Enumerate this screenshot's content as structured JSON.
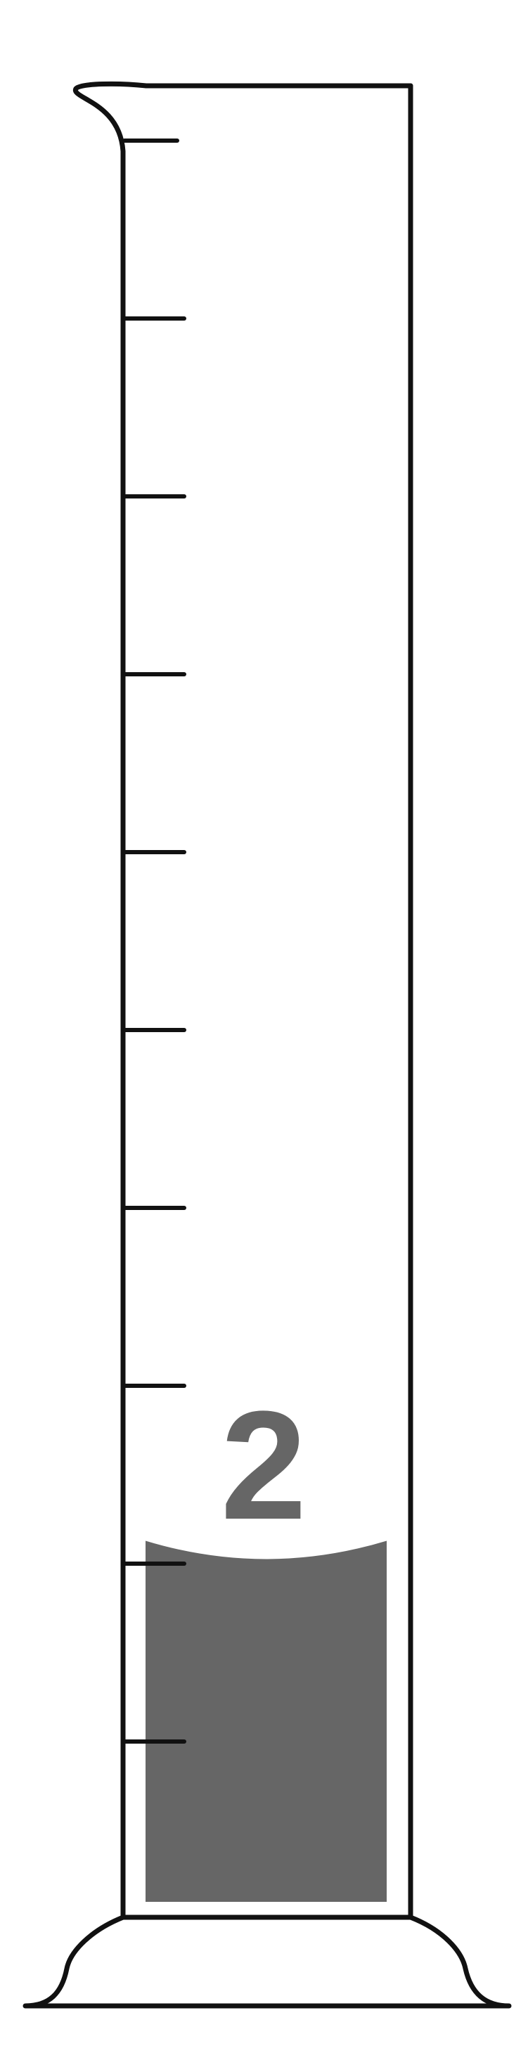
{
  "cylinder": {
    "reading_label": "2",
    "fill_fraction": 0.205,
    "liquid_color": "#666666",
    "outline_color": "#111111",
    "tick_count": 10
  }
}
